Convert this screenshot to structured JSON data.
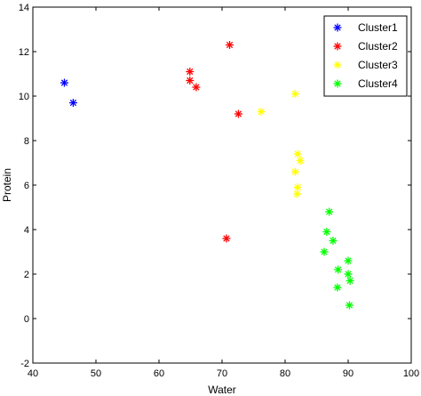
{
  "chart_data": {
    "type": "scatter",
    "title": "",
    "xlabel": "Water",
    "ylabel": "Protein",
    "xlim": [
      40,
      100
    ],
    "ylim": [
      -2,
      14
    ],
    "xticks": [
      40,
      50,
      60,
      70,
      80,
      90,
      100
    ],
    "yticks": [
      -2,
      0,
      2,
      4,
      6,
      8,
      10,
      12,
      14
    ],
    "grid": false,
    "legend_position": "top-right",
    "marker": "*",
    "series": [
      {
        "name": "Cluster1",
        "color": "#0000ff",
        "points": [
          [
            45.0,
            10.6
          ],
          [
            46.4,
            9.7
          ]
        ]
      },
      {
        "name": "Cluster2",
        "color": "#ff0000",
        "points": [
          [
            64.9,
            11.1
          ],
          [
            64.9,
            10.7
          ],
          [
            65.9,
            10.4
          ],
          [
            71.2,
            12.3
          ],
          [
            72.6,
            9.2
          ],
          [
            70.7,
            3.6
          ]
        ]
      },
      {
        "name": "Cluster3",
        "color": "#ffff00",
        "points": [
          [
            81.6,
            10.1
          ],
          [
            76.2,
            9.3
          ],
          [
            82.0,
            7.4
          ],
          [
            82.4,
            7.1
          ],
          [
            81.6,
            6.6
          ],
          [
            82.0,
            5.9
          ],
          [
            81.9,
            5.6
          ]
        ]
      },
      {
        "name": "Cluster4",
        "color": "#00ff00",
        "points": [
          [
            87.0,
            4.8
          ],
          [
            86.6,
            3.9
          ],
          [
            87.6,
            3.5
          ],
          [
            86.2,
            3.0
          ],
          [
            88.4,
            2.2
          ],
          [
            90.0,
            2.6
          ],
          [
            90.0,
            2.0
          ],
          [
            90.3,
            1.7
          ],
          [
            88.3,
            1.4
          ],
          [
            90.2,
            0.6
          ]
        ]
      }
    ]
  }
}
